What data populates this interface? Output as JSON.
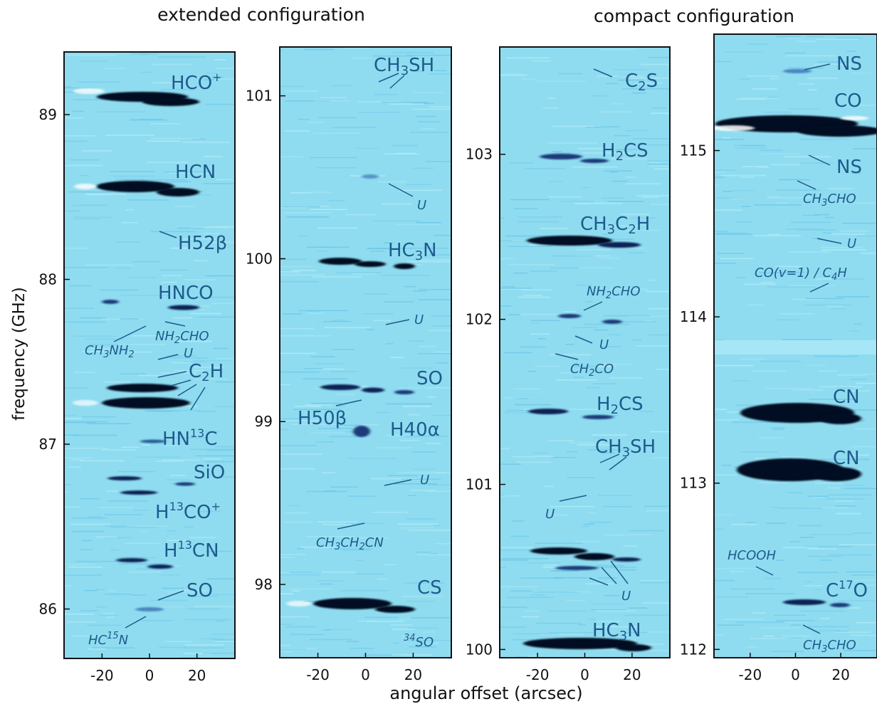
{
  "titles": {
    "extended": "extended configuration",
    "compact": "compact configuration"
  },
  "ylabel": "frequency (GHz)",
  "xlabel": "angular offset (arcsec)",
  "colors": {
    "background": "#8fdcf0",
    "emission": "#050a24",
    "label": "#1f5a8c",
    "leader": "#1f5a8c",
    "frame": "#111111"
  },
  "chart_data": [
    {
      "type": "heatmap",
      "panel": "extended-1",
      "xlim": [
        -36,
        36
      ],
      "ylim": [
        85.7,
        89.38
      ],
      "xticks": [
        "-20",
        "0",
        "20"
      ],
      "yticks": [
        "86",
        "87",
        "88",
        "89"
      ],
      "yticks_values": [
        86,
        87,
        88,
        89
      ],
      "lines": [
        {
          "label": "HCO+",
          "freq": 89.09,
          "strength": 1.0
        },
        {
          "label": "HCN",
          "freq": 88.53,
          "strength": 1.0
        },
        {
          "label": "H52β",
          "freq": 88.24,
          "strength": 0.2
        },
        {
          "label": "HNCO",
          "freq": 87.83,
          "strength": 0.55
        },
        {
          "label": "NH2CHO",
          "freq": 87.72,
          "strength": 0.2
        },
        {
          "label": "CH3NH2",
          "freq": 87.6,
          "strength": 0.2
        },
        {
          "label": "U",
          "freq": 87.47,
          "strength": 0.2
        },
        {
          "label": "C2H",
          "freq": 87.28,
          "strength": 1.0
        },
        {
          "label": "HN13C",
          "freq": 87.02,
          "strength": 0.35
        },
        {
          "label": "SiO",
          "freq": 86.76,
          "strength": 0.6
        },
        {
          "label": "H13CO+",
          "freq": 86.67,
          "strength": 0.55
        },
        {
          "label": "H13CN",
          "freq": 86.28,
          "strength": 0.6
        },
        {
          "label": "SO",
          "freq": 86.02,
          "strength": 0.3
        },
        {
          "label": "HC15N",
          "freq": 85.92,
          "strength": 0.2
        }
      ]
    },
    {
      "type": "heatmap",
      "panel": "extended-2",
      "xlim": [
        -36,
        36
      ],
      "ylim": [
        97.55,
        101.3
      ],
      "xticks": [
        "-20",
        "0",
        "20"
      ],
      "yticks": [
        "98",
        "99",
        "100",
        "101"
      ],
      "yticks_values": [
        98,
        99,
        100,
        101
      ],
      "lines": [
        {
          "label": "CH3SH",
          "freq": 101.14,
          "strength": 0.2
        },
        {
          "label": "U",
          "freq": 100.52,
          "strength": 0.2
        },
        {
          "label": "HC3N",
          "freq": 99.99,
          "strength": 0.9
        },
        {
          "label": "U",
          "freq": 99.58,
          "strength": 0.2
        },
        {
          "label": "SO",
          "freq": 99.22,
          "strength": 0.75
        },
        {
          "label": "H50β",
          "freq": 99.15,
          "strength": 0.3
        },
        {
          "label": "H40α",
          "freq": 99.02,
          "strength": 0.6
        },
        {
          "label": "U",
          "freq": 98.62,
          "strength": 0.2
        },
        {
          "label": "CH3CH2CN",
          "freq": 98.44,
          "strength": 0.2
        },
        {
          "label": "CS",
          "freq": 97.88,
          "strength": 1.0
        },
        {
          "label": "34SO",
          "freq": 97.72,
          "strength": 0.2
        }
      ]
    },
    {
      "type": "heatmap",
      "panel": "compact-1",
      "xlim": [
        -36,
        36
      ],
      "ylim": [
        99.95,
        103.65
      ],
      "xticks": [
        "-20",
        "0",
        "20"
      ],
      "yticks": [
        "100",
        "101",
        "102",
        "103"
      ],
      "yticks_values": [
        100,
        101,
        102,
        103
      ],
      "lines": [
        {
          "label": "C2S",
          "freq": 103.55,
          "strength": 0.3
        },
        {
          "label": "H2CS",
          "freq": 102.95,
          "strength": 0.45
        },
        {
          "label": "CH3C2H",
          "freq": 102.47,
          "strength": 1.0
        },
        {
          "label": "NH2CHO",
          "freq": 102.0,
          "strength": 0.35
        },
        {
          "label": "U",
          "freq": 101.9,
          "strength": 0.3
        },
        {
          "label": "CH2CO",
          "freq": 101.8,
          "strength": 0.3
        },
        {
          "label": "H2CS",
          "freq": 101.36,
          "strength": 0.55
        },
        {
          "label": "CH3SH",
          "freq": 101.1,
          "strength": 0.35
        },
        {
          "label": "U",
          "freq": 100.85,
          "strength": 0.2
        },
        {
          "label": "U",
          "freq": 100.55,
          "strength": 0.7
        },
        {
          "label": "HC3N",
          "freq": 100.06,
          "strength": 1.0
        }
      ]
    },
    {
      "type": "heatmap",
      "panel": "compact-2",
      "xlim": [
        -36,
        36
      ],
      "ylim": [
        111.95,
        115.7
      ],
      "xticks": [
        "-20",
        "0",
        "20"
      ],
      "yticks": [
        "112",
        "113",
        "114",
        "115"
      ],
      "yticks_values": [
        112,
        113,
        114,
        115
      ],
      "lines": [
        {
          "label": "NS",
          "freq": 115.49,
          "strength": 0.3
        },
        {
          "label": "CO",
          "freq": 115.27,
          "strength": 1.0
        },
        {
          "label": "NS",
          "freq": 114.99,
          "strength": 0.2
        },
        {
          "label": "CH3CHO",
          "freq": 114.84,
          "strength": 0.2
        },
        {
          "label": "U",
          "freq": 114.48,
          "strength": 0.15
        },
        {
          "label": "CO(v=1) / C4H",
          "freq": 114.22,
          "strength": 0.2
        },
        {
          "label": "CN",
          "freq": 113.49,
          "strength": 1.0
        },
        {
          "label": "CN",
          "freq": 113.15,
          "strength": 1.0
        },
        {
          "label": "HCOOH",
          "freq": 112.45,
          "strength": 0.2
        },
        {
          "label": "C17O",
          "freq": 112.36,
          "strength": 0.45
        },
        {
          "label": "CH3CHO",
          "freq": 112.25,
          "strength": 0.2
        }
      ]
    }
  ]
}
